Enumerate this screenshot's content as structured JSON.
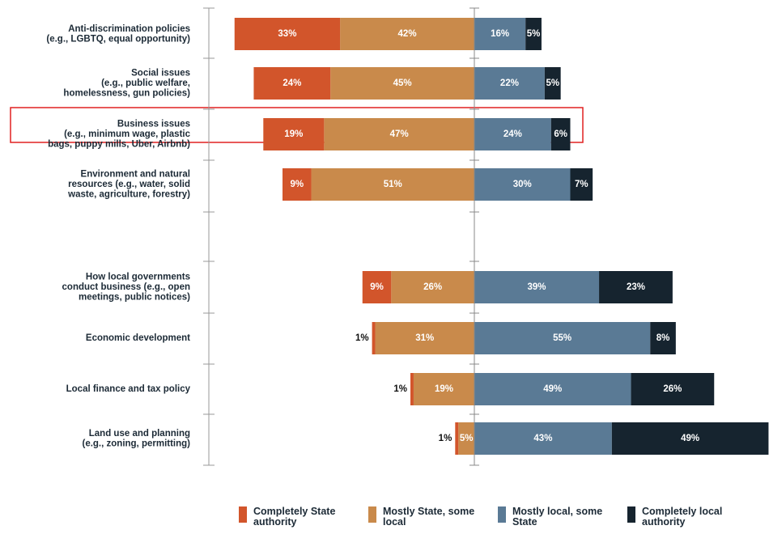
{
  "chart_data": {
    "type": "diverging-bar",
    "categories": [
      [
        "Anti-discrimination policies",
        "(e.g., LGBTQ, equal opportunity)"
      ],
      [
        "Social issues",
        "(e.g., public welfare,",
        "homelessness, gun policies)"
      ],
      [
        "Business issues",
        "(e.g., minimum wage, plastic",
        "bags, puppy mills, Uber, Airbnb)"
      ],
      [
        "Environment and natural",
        "resources (e.g., water, solid",
        "waste, agriculture, forestry)"
      ],
      [
        "How local governments",
        "conduct business (e.g., open",
        "meetings, public notices)"
      ],
      [
        "Economic development"
      ],
      [
        "Local finance and tax policy"
      ],
      [
        "Land use and planning",
        "(e.g., zoning, permitting)"
      ]
    ],
    "series": [
      {
        "name": "Completely State authority",
        "color": "#d2552b",
        "side": "left",
        "values": [
          33,
          24,
          19,
          9,
          9,
          1,
          1,
          1
        ],
        "value_labels": [
          "33%",
          "24%",
          "19%",
          "9%",
          "9%",
          "1%",
          "1%",
          "1%"
        ]
      },
      {
        "name": "Mostly State, some local",
        "color": "#c98a4b",
        "side": "left",
        "values": [
          42,
          45,
          47,
          51,
          26,
          31,
          19,
          5
        ],
        "value_labels": [
          "42%",
          "45%",
          "47%",
          "51%",
          "26%",
          "31%",
          "19%",
          "5%"
        ]
      },
      {
        "name": "Mostly local, some State",
        "color": "#5a7a95",
        "side": "right",
        "values": [
          16,
          22,
          24,
          30,
          39,
          55,
          49,
          43
        ],
        "value_labels": [
          "16%",
          "22%",
          "24%",
          "30%",
          "39%",
          "55%",
          "49%",
          "43%"
        ]
      },
      {
        "name": "Completely local authority",
        "color": "#16242f",
        "side": "right",
        "values": [
          5,
          5,
          6,
          7,
          23,
          8,
          26,
          49
        ],
        "value_labels": [
          "5%",
          "5%",
          "6%",
          "7%",
          "23%",
          "8%",
          "26%",
          "49%"
        ]
      }
    ]
  }
}
